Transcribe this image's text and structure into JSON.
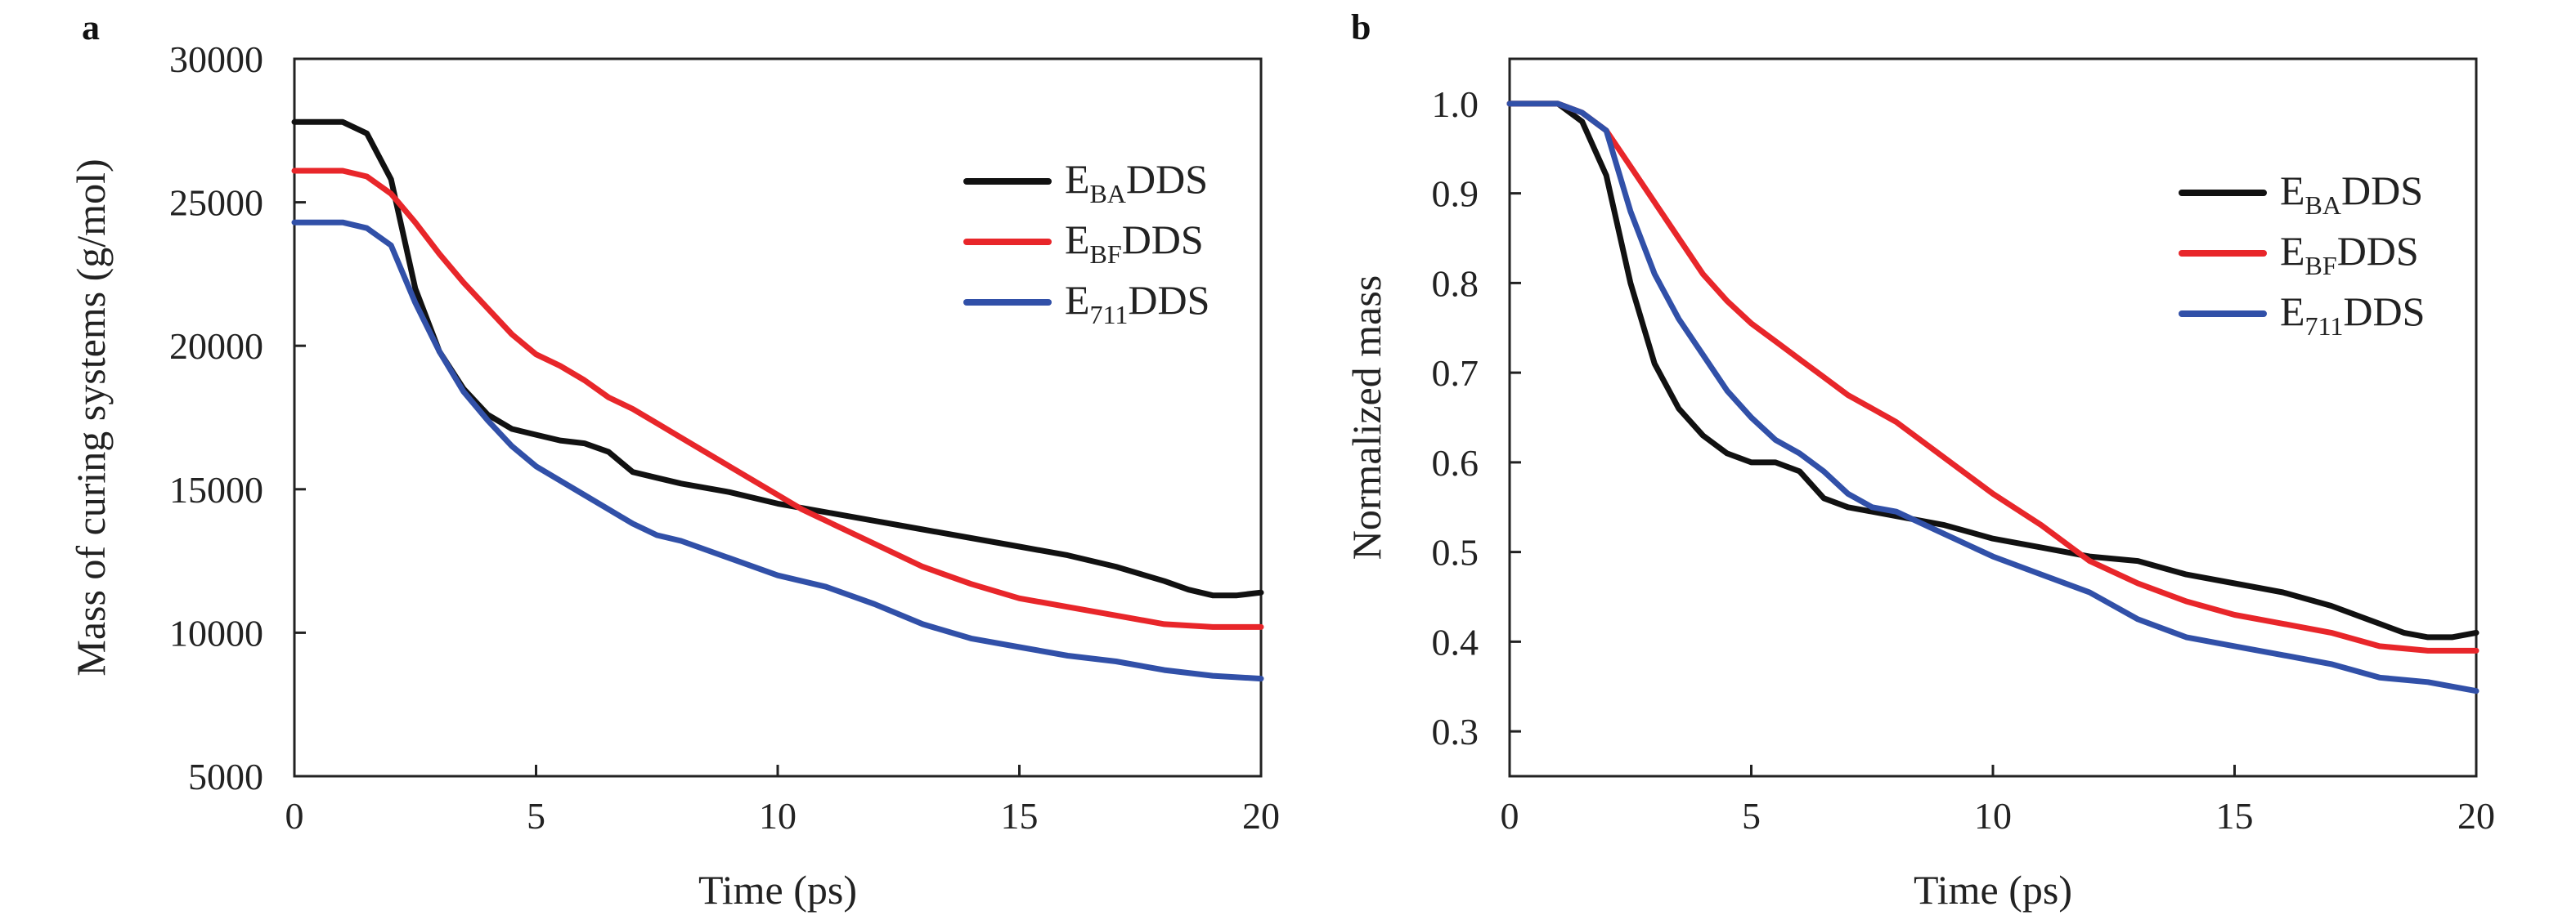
{
  "chart_data": [
    {
      "panel": "a",
      "type": "line",
      "xlabel": "Time (ps)",
      "ylabel": "Mass of curing systems (g/mol)",
      "xlim": [
        0,
        20
      ],
      "ylim": [
        5000,
        30000
      ],
      "xticks": [
        "0",
        "5",
        "10",
        "15",
        "20"
      ],
      "yticks": [
        "5000",
        "10000",
        "15000",
        "20000",
        "25000",
        "30000"
      ],
      "legend_position": "upper-right",
      "series": [
        {
          "name": "EBADDS",
          "legend_main": "E",
          "legend_sub": "BA",
          "legend_suffix": "DDS",
          "color": "#111111",
          "points": [
            [
              0,
              27800
            ],
            [
              1,
              27800
            ],
            [
              1.5,
              27400
            ],
            [
              2,
              25800
            ],
            [
              2.5,
              22000
            ],
            [
              3,
              19800
            ],
            [
              3.5,
              18500
            ],
            [
              4,
              17600
            ],
            [
              4.5,
              17100
            ],
            [
              5,
              16900
            ],
            [
              5.5,
              16700
            ],
            [
              6,
              16600
            ],
            [
              6.5,
              16300
            ],
            [
              7,
              15600
            ],
            [
              7.5,
              15400
            ],
            [
              8,
              15200
            ],
            [
              9,
              14900
            ],
            [
              10,
              14500
            ],
            [
              11,
              14200
            ],
            [
              12,
              13900
            ],
            [
              13,
              13600
            ],
            [
              14,
              13300
            ],
            [
              15,
              13000
            ],
            [
              16,
              12700
            ],
            [
              17,
              12300
            ],
            [
              18,
              11800
            ],
            [
              18.5,
              11500
            ],
            [
              19,
              11300
            ],
            [
              19.5,
              11300
            ],
            [
              20,
              11400
            ]
          ]
        },
        {
          "name": "EBFDDS",
          "legend_main": "E",
          "legend_sub": "BF",
          "legend_suffix": "DDS",
          "color": "#e8262a",
          "points": [
            [
              0,
              26100
            ],
            [
              1,
              26100
            ],
            [
              1.5,
              25900
            ],
            [
              2,
              25300
            ],
            [
              2.5,
              24300
            ],
            [
              3,
              23200
            ],
            [
              3.5,
              22200
            ],
            [
              4,
              21300
            ],
            [
              4.5,
              20400
            ],
            [
              5,
              19700
            ],
            [
              5.5,
              19300
            ],
            [
              6,
              18800
            ],
            [
              6.5,
              18200
            ],
            [
              7,
              17800
            ],
            [
              7.5,
              17300
            ],
            [
              8,
              16800
            ],
            [
              9,
              15800
            ],
            [
              10,
              14800
            ],
            [
              10.5,
              14300
            ],
            [
              11,
              13900
            ],
            [
              12,
              13100
            ],
            [
              13,
              12300
            ],
            [
              14,
              11700
            ],
            [
              15,
              11200
            ],
            [
              16,
              10900
            ],
            [
              17,
              10600
            ],
            [
              18,
              10300
            ],
            [
              19,
              10200
            ],
            [
              20,
              10200
            ]
          ]
        },
        {
          "name": "E711DDS",
          "legend_main": "E",
          "legend_sub": "711",
          "legend_suffix": "DDS",
          "color": "#3150a8",
          "points": [
            [
              0,
              24300
            ],
            [
              1,
              24300
            ],
            [
              1.5,
              24100
            ],
            [
              2,
              23500
            ],
            [
              2.5,
              21500
            ],
            [
              3,
              19800
            ],
            [
              3.5,
              18400
            ],
            [
              4,
              17400
            ],
            [
              4.5,
              16500
            ],
            [
              5,
              15800
            ],
            [
              5.5,
              15300
            ],
            [
              6,
              14800
            ],
            [
              6.5,
              14300
            ],
            [
              7,
              13800
            ],
            [
              7.5,
              13400
            ],
            [
              8,
              13200
            ],
            [
              9,
              12600
            ],
            [
              10,
              12000
            ],
            [
              11,
              11600
            ],
            [
              12,
              11000
            ],
            [
              13,
              10300
            ],
            [
              14,
              9800
            ],
            [
              15,
              9500
            ],
            [
              16,
              9200
            ],
            [
              17,
              9000
            ],
            [
              18,
              8700
            ],
            [
              19,
              8500
            ],
            [
              20,
              8400
            ]
          ]
        }
      ]
    },
    {
      "panel": "b",
      "type": "line",
      "xlabel": "Time (ps)",
      "ylabel": "Normalized mass",
      "xlim": [
        0,
        20
      ],
      "ylim": [
        0.25,
        1.05
      ],
      "xticks": [
        "0",
        "5",
        "10",
        "15",
        "20"
      ],
      "yticks": [
        "0.3",
        "0.4",
        "0.5",
        "0.6",
        "0.7",
        "0.8",
        "0.9",
        "1.0"
      ],
      "legend_position": "upper-right",
      "series": [
        {
          "name": "EBADDS",
          "legend_main": "E",
          "legend_sub": "BA",
          "legend_suffix": "DDS",
          "color": "#111111",
          "points": [
            [
              0,
              1.0
            ],
            [
              1,
              1.0
            ],
            [
              1.5,
              0.98
            ],
            [
              2,
              0.92
            ],
            [
              2.5,
              0.8
            ],
            [
              3,
              0.71
            ],
            [
              3.5,
              0.66
            ],
            [
              4,
              0.63
            ],
            [
              4.5,
              0.61
            ],
            [
              5,
              0.6
            ],
            [
              5.5,
              0.6
            ],
            [
              6,
              0.59
            ],
            [
              6.5,
              0.56
            ],
            [
              7,
              0.55
            ],
            [
              7.5,
              0.545
            ],
            [
              8,
              0.54
            ],
            [
              9,
              0.53
            ],
            [
              10,
              0.515
            ],
            [
              11,
              0.505
            ],
            [
              12,
              0.495
            ],
            [
              13,
              0.49
            ],
            [
              14,
              0.475
            ],
            [
              15,
              0.465
            ],
            [
              16,
              0.455
            ],
            [
              17,
              0.44
            ],
            [
              18,
              0.42
            ],
            [
              18.5,
              0.41
            ],
            [
              19,
              0.405
            ],
            [
              19.5,
              0.405
            ],
            [
              20,
              0.41
            ]
          ]
        },
        {
          "name": "EBFDDS",
          "legend_main": "E",
          "legend_sub": "BF",
          "legend_suffix": "DDS",
          "color": "#e8262a",
          "points": [
            [
              0,
              1.0
            ],
            [
              1,
              1.0
            ],
            [
              1.5,
              0.99
            ],
            [
              2,
              0.97
            ],
            [
              2.5,
              0.93
            ],
            [
              3,
              0.89
            ],
            [
              3.5,
              0.85
            ],
            [
              4,
              0.81
            ],
            [
              4.5,
              0.78
            ],
            [
              5,
              0.755
            ],
            [
              5.5,
              0.735
            ],
            [
              6,
              0.715
            ],
            [
              6.5,
              0.695
            ],
            [
              7,
              0.675
            ],
            [
              7.5,
              0.66
            ],
            [
              8,
              0.645
            ],
            [
              9,
              0.605
            ],
            [
              10,
              0.565
            ],
            [
              11,
              0.53
            ],
            [
              12,
              0.49
            ],
            [
              13,
              0.465
            ],
            [
              14,
              0.445
            ],
            [
              15,
              0.43
            ],
            [
              16,
              0.42
            ],
            [
              17,
              0.41
            ],
            [
              18,
              0.395
            ],
            [
              19,
              0.39
            ],
            [
              20,
              0.39
            ]
          ]
        },
        {
          "name": "E711DDS",
          "legend_main": "E",
          "legend_sub": "711",
          "legend_suffix": "DDS",
          "color": "#3150a8",
          "points": [
            [
              0,
              1.0
            ],
            [
              1,
              1.0
            ],
            [
              1.5,
              0.99
            ],
            [
              2,
              0.97
            ],
            [
              2.5,
              0.88
            ],
            [
              3,
              0.81
            ],
            [
              3.5,
              0.76
            ],
            [
              4,
              0.72
            ],
            [
              4.5,
              0.68
            ],
            [
              5,
              0.65
            ],
            [
              5.5,
              0.625
            ],
            [
              6,
              0.61
            ],
            [
              6.5,
              0.59
            ],
            [
              7,
              0.565
            ],
            [
              7.5,
              0.55
            ],
            [
              8,
              0.545
            ],
            [
              9,
              0.52
            ],
            [
              10,
              0.495
            ],
            [
              11,
              0.475
            ],
            [
              12,
              0.455
            ],
            [
              13,
              0.425
            ],
            [
              14,
              0.405
            ],
            [
              15,
              0.395
            ],
            [
              16,
              0.385
            ],
            [
              17,
              0.375
            ],
            [
              18,
              0.36
            ],
            [
              19,
              0.355
            ],
            [
              20,
              0.345
            ]
          ]
        }
      ]
    }
  ]
}
